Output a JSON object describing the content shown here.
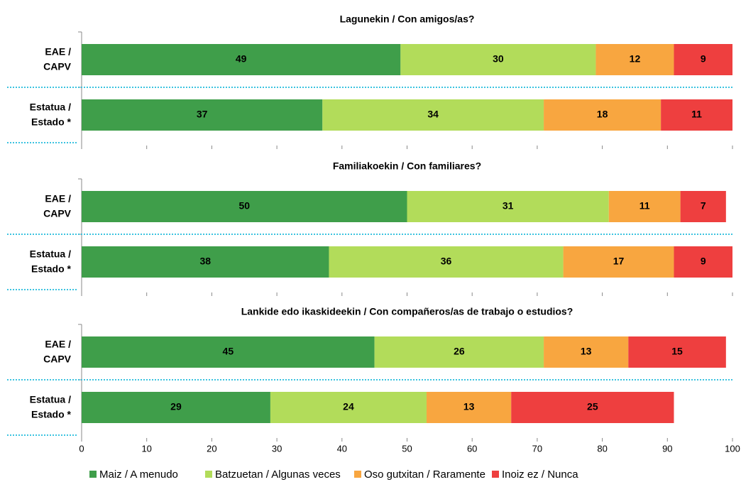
{
  "chart_data": {
    "type": "stacked-bar",
    "xlim": [
      0,
      100
    ],
    "xticks": [
      0,
      10,
      20,
      30,
      40,
      50,
      60,
      70,
      80,
      90,
      100
    ],
    "series": [
      {
        "name": "Maiz / A menudo",
        "color": "#3f9e4a"
      },
      {
        "name": "Batzuetan / Algunas veces",
        "color": "#b2dc5a"
      },
      {
        "name": "Oso gutxitan / Raramente",
        "color": "#f8a640"
      },
      {
        "name": "Inoiz ez / Nunca",
        "color": "#ee3f3f"
      }
    ],
    "panels": [
      {
        "title": "Lagunekin / Con amigos/as?",
        "categories": [
          [
            "EAE /",
            "CAPV"
          ],
          [
            "Estatua /",
            "Estado *"
          ]
        ],
        "values": [
          [
            49,
            37
          ],
          [
            30,
            34
          ],
          [
            12,
            18
          ],
          [
            9,
            11
          ]
        ]
      },
      {
        "title": "Familiakoekin / Con familiares?",
        "categories": [
          [
            "EAE /",
            "CAPV"
          ],
          [
            "Estatua /",
            "Estado *"
          ]
        ],
        "values": [
          [
            50,
            38
          ],
          [
            31,
            36
          ],
          [
            11,
            17
          ],
          [
            7,
            9
          ]
        ]
      },
      {
        "title": "Lankide edo ikaskideekin / Con compañeros/as de trabajo o estudios?",
        "categories": [
          [
            "EAE /",
            "CAPV"
          ],
          [
            "Estatua /",
            "Estado *"
          ]
        ],
        "values": [
          [
            45,
            29
          ],
          [
            26,
            24
          ],
          [
            13,
            13
          ],
          [
            15,
            25
          ]
        ]
      }
    ]
  }
}
